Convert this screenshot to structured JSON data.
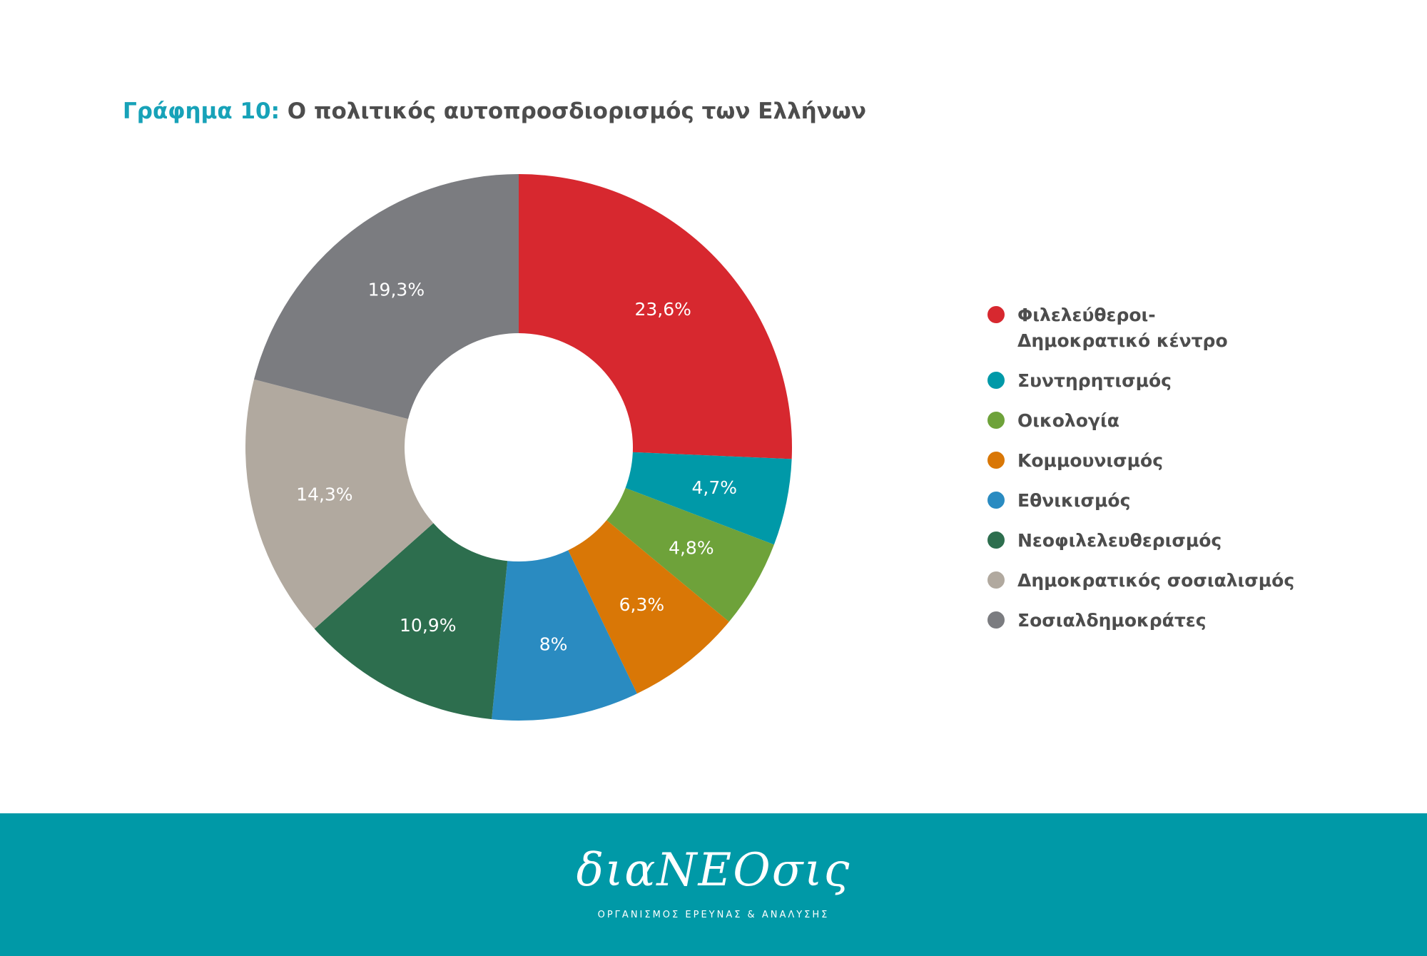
{
  "chart_data": {
    "type": "pie",
    "title_prefix": "Γράφημα 10:",
    "title": "Ο πολιτικός αυτοπροσδιορισμός των Ελλήνων",
    "slices": [
      {
        "label": "Φιλελεύθεροι-Δημοκρατικό κέντρο",
        "value": 23.6,
        "display": "23,6%",
        "color": "#d7282f"
      },
      {
        "label": "Συντηρητισμός",
        "value": 4.7,
        "display": "4,7%",
        "color": "#0099a8"
      },
      {
        "label": "Οικολογία",
        "value": 4.8,
        "display": "4,8%",
        "color": "#6ea23a"
      },
      {
        "label": "Κομμουνισμός",
        "value": 6.3,
        "display": "6,3%",
        "color": "#d97706"
      },
      {
        "label": "Εθνικισμός",
        "value": 8,
        "display": "8%",
        "color": "#2a8bc1"
      },
      {
        "label": "Νεοφιλελευθερισμός",
        "value": 10.9,
        "display": "10,9%",
        "color": "#2d6e4e"
      },
      {
        "label": "Δημοκρατικός σοσιαλισμός",
        "value": 14.3,
        "display": "14,3%",
        "color": "#b1a99f"
      },
      {
        "label": "Σοσιαλδημοκράτες",
        "value": 19.3,
        "display": "19,3%",
        "color": "#7b7c80"
      }
    ],
    "legend_position": "right"
  },
  "legend": {
    "items": [
      {
        "line1": "Φιλελεύθεροι-",
        "line2": "Δημοκρατικό κέντρο",
        "color": "#d7282f"
      },
      {
        "line1": "Συντηρητισμός",
        "line2": "",
        "color": "#0099a8"
      },
      {
        "line1": "Οικολογία",
        "line2": "",
        "color": "#6ea23a"
      },
      {
        "line1": "Κομμουνισμός",
        "line2": "",
        "color": "#d97706"
      },
      {
        "line1": "Εθνικισμός",
        "line2": "",
        "color": "#2a8bc1"
      },
      {
        "line1": "Νεοφιλελευθερισμός",
        "line2": "",
        "color": "#2d6e4e"
      },
      {
        "line1": "Δημοκρατικός σοσιαλισμός",
        "line2": "",
        "color": "#b1a99f"
      },
      {
        "line1": "Σοσιαλδημοκράτες",
        "line2": "",
        "color": "#7b7c80"
      }
    ]
  },
  "footer": {
    "logo": "διαΝΕΟσις",
    "tagline": "ΟΡΓΑΝΙΣΜΟΣ ΕΡΕΥΝΑΣ & ΑΝΑΛΥΣΗΣ",
    "background": "#0099a7"
  }
}
